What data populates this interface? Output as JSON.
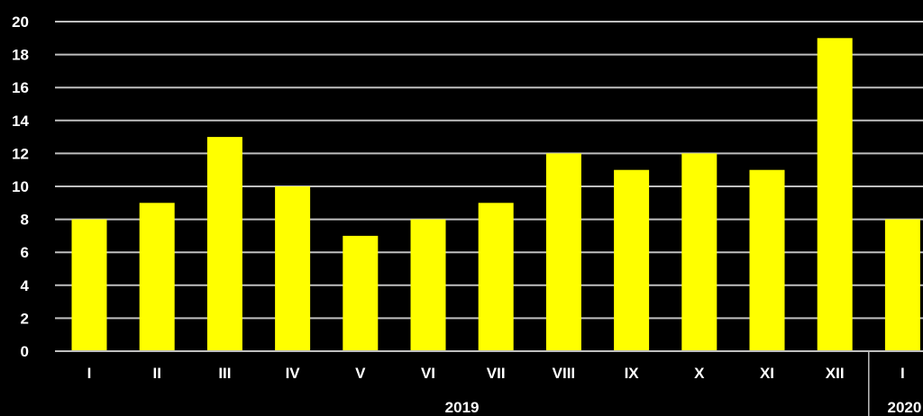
{
  "chart_data": {
    "type": "bar",
    "categories": [
      "I",
      "II",
      "III",
      "IV",
      "V",
      "VI",
      "VII",
      "VIII",
      "IX",
      "X",
      "XI",
      "XII",
      "I"
    ],
    "values": [
      8,
      9,
      13,
      10,
      7,
      8,
      9,
      12,
      11,
      12,
      11,
      19,
      8
    ],
    "groups": [
      {
        "label": "2019",
        "categories": 12
      },
      {
        "label": "2020",
        "categories": 1
      }
    ],
    "yticks": [
      "0",
      "2",
      "4",
      "6",
      "8",
      "10",
      "12",
      "14",
      "16",
      "18",
      "20"
    ],
    "ylim": [
      0,
      20
    ],
    "grid": true,
    "legend": "none",
    "title": "",
    "xlabel": "",
    "ylabel": "",
    "colors": {
      "background": "#000000",
      "bar": "#ffff00",
      "grid": "#bfbfbf",
      "text": "#ffffff"
    }
  }
}
